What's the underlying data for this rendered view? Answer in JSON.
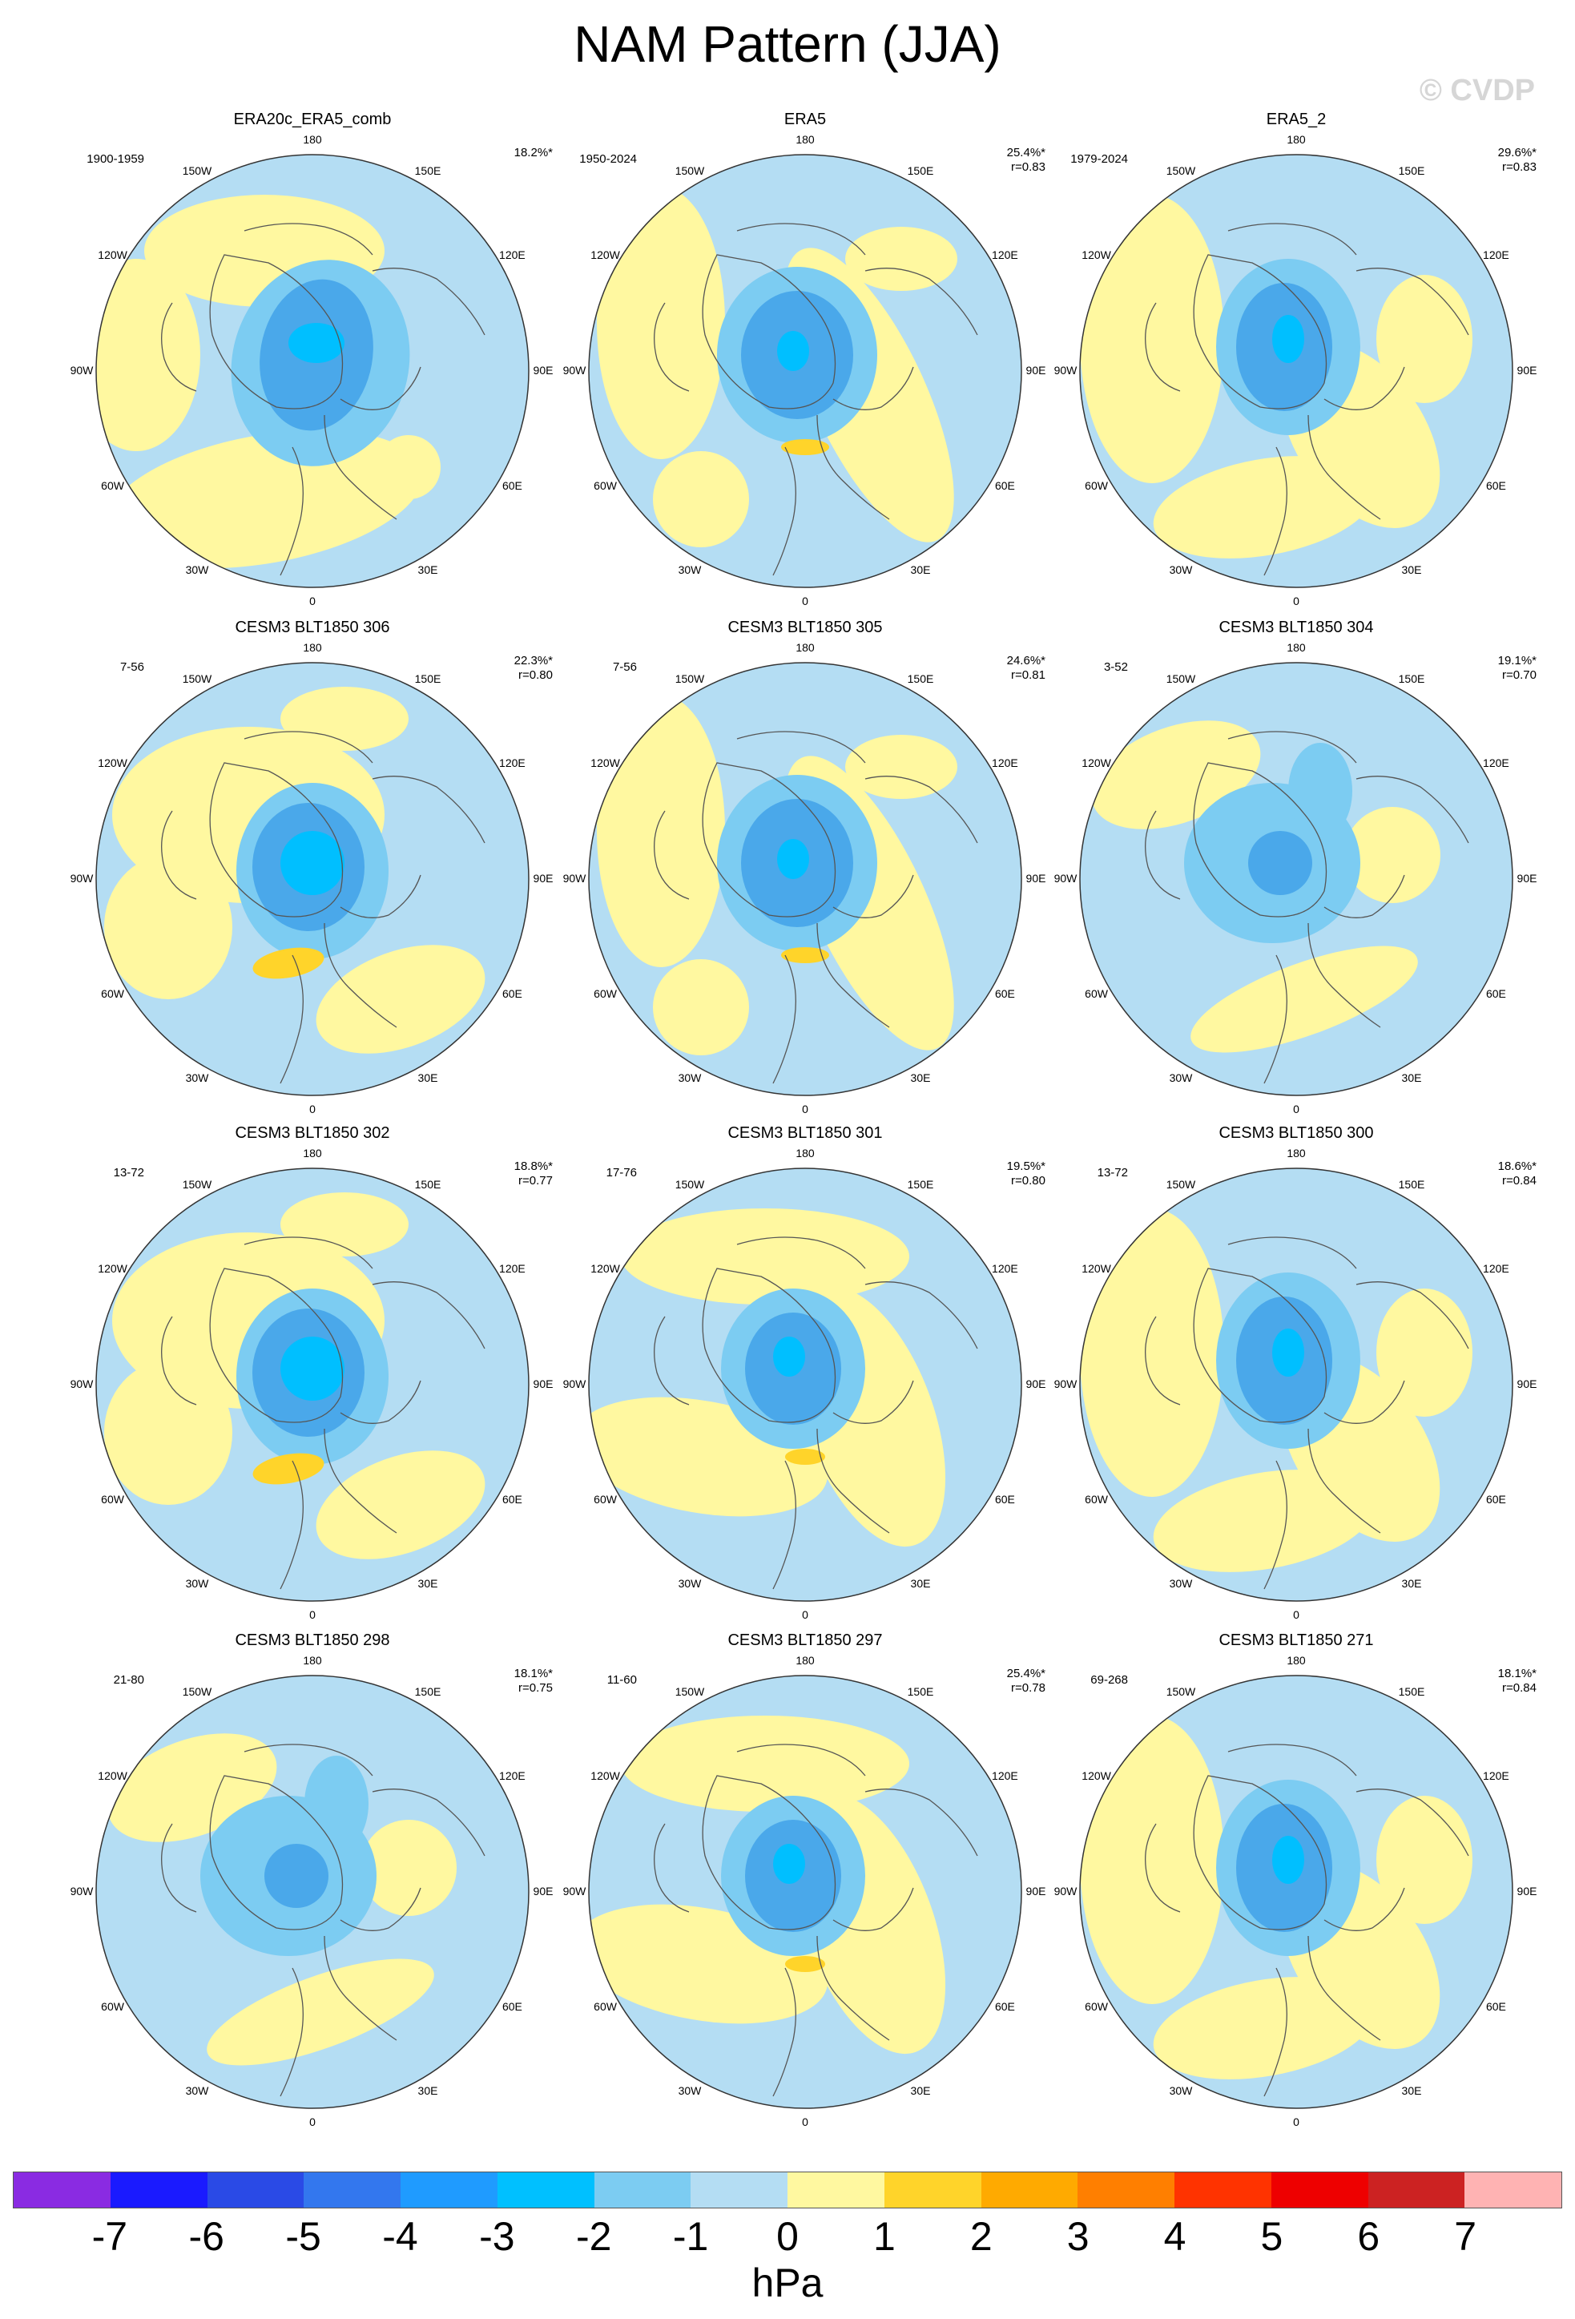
{
  "title": "NAM Pattern (JJA)",
  "watermark": "© CVDP",
  "units": "hPa",
  "longitude_labels": [
    "180",
    "150E",
    "120E",
    "90E",
    "60E",
    "30E",
    "0",
    "30W",
    "60W",
    "90W",
    "120W",
    "150W"
  ],
  "panels": [
    {
      "name": "ERA20c_ERA5_comb",
      "period": "1900-1959",
      "pct": "18.2%*",
      "r": "",
      "variant": 0
    },
    {
      "name": "ERA5",
      "period": "1950-2024",
      "pct": "25.4%*",
      "r": "r=0.83",
      "variant": 1
    },
    {
      "name": "ERA5_2",
      "period": "1979-2024",
      "pct": "29.6%*",
      "r": "r=0.83",
      "variant": 2
    },
    {
      "name": "CESM3 BLT1850 306",
      "period": "7-56",
      "pct": "22.3%*",
      "r": "r=0.80",
      "variant": 3
    },
    {
      "name": "CESM3 BLT1850 305",
      "period": "7-56",
      "pct": "24.6%*",
      "r": "r=0.81",
      "variant": 1
    },
    {
      "name": "CESM3 BLT1850 304",
      "period": "3-52",
      "pct": "19.1%*",
      "r": "r=0.70",
      "variant": 4
    },
    {
      "name": "CESM3 BLT1850 302",
      "period": "13-72",
      "pct": "18.8%*",
      "r": "r=0.77",
      "variant": 3
    },
    {
      "name": "CESM3 BLT1850 301",
      "period": "17-76",
      "pct": "19.5%*",
      "r": "r=0.80",
      "variant": 5
    },
    {
      "name": "CESM3 BLT1850 300",
      "period": "13-72",
      "pct": "18.6%*",
      "r": "r=0.84",
      "variant": 2
    },
    {
      "name": "CESM3 BLT1850 298",
      "period": "21-80",
      "pct": "18.1%*",
      "r": "r=0.75",
      "variant": 4
    },
    {
      "name": "CESM3 BLT1850 297",
      "period": "11-60",
      "pct": "25.4%*",
      "r": "r=0.78",
      "variant": 5
    },
    {
      "name": "CESM3 BLT1850 271",
      "period": "69-268",
      "pct": "18.1%*",
      "r": "r=0.84",
      "variant": 2
    }
  ],
  "colorbar": {
    "colors": [
      "#8a2be2",
      "#1a1aff",
      "#2a4ae6",
      "#3377ee",
      "#1f9bff",
      "#00c0ff",
      "#7cccf2",
      "#b4ddf3",
      "#fff8a0",
      "#ffd42a",
      "#ffaa00",
      "#ff7f00",
      "#ff3300",
      "#ee0000",
      "#cc2222",
      "#ffb3b3"
    ],
    "ticks": [
      "-7",
      "-6",
      "-5",
      "-4",
      "-3",
      "-2",
      "-1",
      "0",
      "1",
      "2",
      "3",
      "4",
      "5",
      "6",
      "7"
    ]
  },
  "colors": {
    "light_blue": "#b4ddf3",
    "mid_blue": "#7cccf2",
    "blue": "#4aa8ea",
    "cyan": "#00bfff",
    "yellow": "#fff8a0",
    "gold": "#ffd42a",
    "coast": "#555555"
  }
}
